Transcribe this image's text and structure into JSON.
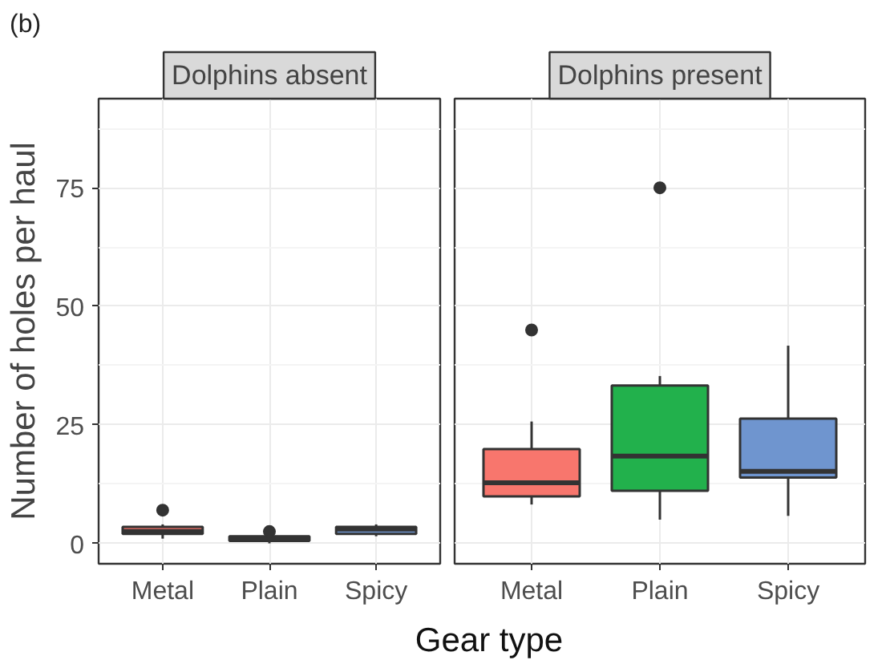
{
  "chart_data": [
    {
      "type": "box",
      "title": "Dolphins absent",
      "xlabel": "Gear type",
      "ylabel": "Number of holes per haul",
      "annotations": [
        "(b)"
      ],
      "categories": [
        "Metal",
        "Plain",
        "Spicy"
      ],
      "colors": [
        "#f8766d",
        "#22b14c",
        "#6f95cf"
      ],
      "boxes": [
        {
          "low": 1,
          "q1": 2,
          "median": 2.5,
          "q3": 3.5,
          "high": 4,
          "outliers": [
            7
          ]
        },
        {
          "low": 0,
          "q1": 0.5,
          "median": 1,
          "q3": 1.5,
          "high": 2,
          "outliers": [
            2.5
          ]
        },
        {
          "low": 1.5,
          "q1": 2,
          "median": 3,
          "q3": 3.5,
          "high": 4
        }
      ],
      "ylim": [
        -4.3,
        93.8
      ],
      "yticks": [
        0,
        25,
        50,
        75
      ],
      "grid": true
    },
    {
      "type": "box",
      "title": "Dolphins present",
      "categories": [
        "Metal",
        "Plain",
        "Spicy"
      ],
      "colors": [
        "#f8766d",
        "#22b14c",
        "#6f95cf"
      ],
      "boxes": [
        {
          "low": 8.2,
          "q1": 9.9,
          "median": 12.8,
          "q3": 19.9,
          "high": 25.7,
          "outliers": [
            45
          ]
        },
        {
          "low": 5,
          "q1": 11.1,
          "median": 18.4,
          "q3": 33.3,
          "high": 35.3,
          "outliers": [
            75
          ]
        },
        {
          "low": 5.8,
          "q1": 13.9,
          "median": 15.2,
          "q3": 26.3,
          "high": 41.7
        }
      ],
      "ylim": [
        -4.3,
        93.8
      ],
      "yticks": [
        0,
        25,
        50,
        75
      ],
      "grid": true,
      "tick_labels": "x"
    }
  ]
}
